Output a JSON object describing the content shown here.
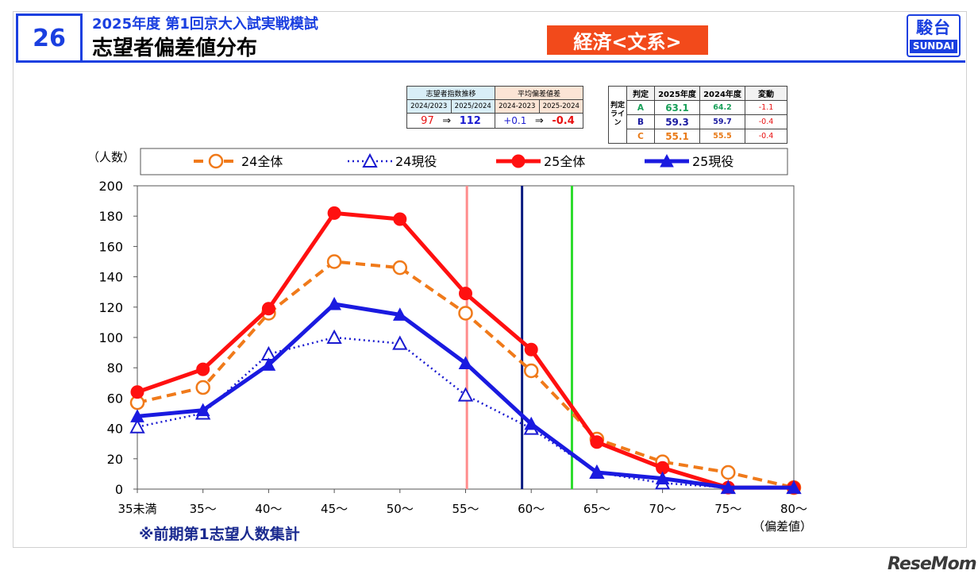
{
  "header": {
    "slide_number": "26",
    "subtitle": "2025年度 第1回京大入試実戦模試",
    "title": "志望者偏差値分布",
    "category": "経済<文系>",
    "logo_kanji": "駿台",
    "logo_en": "SUNDAI"
  },
  "applicant_table": {
    "head_left": "志望者指数推移",
    "head_right": "平均偏差値差",
    "sub": [
      "2024/2023",
      "2025/2024",
      "2024-2023",
      "2025-2024"
    ],
    "left_from": "97",
    "arrow": "⇒",
    "left_to": "112",
    "right_from": "+0.1",
    "right_to": "-0.4"
  },
  "judgement_table": {
    "side_label": "判定ライン",
    "headers": [
      "判定",
      "2025年度",
      "2024年度",
      "変動"
    ],
    "rows": [
      {
        "grade": "A",
        "y2025": "63.1",
        "y2024": "64.2",
        "change": "-1.1",
        "color": "#1aa05a"
      },
      {
        "grade": "B",
        "y2025": "59.3",
        "y2024": "59.7",
        "change": "-0.4",
        "color": "#1a1aa0"
      },
      {
        "grade": "C",
        "y2025": "55.1",
        "y2024": "55.5",
        "change": "-0.4",
        "color": "#e87a18"
      }
    ]
  },
  "chart_data": {
    "type": "line",
    "ylabel": "（人数）",
    "xlabel": "（偏差値）",
    "ylim": [
      0,
      200
    ],
    "yticks": [
      0,
      20,
      40,
      60,
      80,
      100,
      120,
      140,
      160,
      180,
      200
    ],
    "categories": [
      "35未満",
      "35～",
      "40～",
      "45～",
      "50～",
      "55～",
      "60～",
      "65～",
      "70～",
      "75～",
      "80～"
    ],
    "series": [
      {
        "name": "24全体",
        "color": "#f07a1a",
        "values": [
          57,
          67,
          116,
          150,
          146,
          116,
          78,
          33,
          18,
          11,
          1
        ]
      },
      {
        "name": "24現役",
        "color": "#1a1ad0",
        "values": [
          41,
          50,
          89,
          100,
          96,
          62,
          40,
          11,
          4,
          1,
          1
        ]
      },
      {
        "name": "25全体",
        "color": "#ff1010",
        "values": [
          64,
          79,
          119,
          182,
          178,
          129,
          92,
          31,
          14,
          1,
          1
        ]
      },
      {
        "name": "25現役",
        "color": "#1a1ae0",
        "values": [
          48,
          52,
          82,
          122,
          115,
          83,
          43,
          11,
          7,
          1,
          1
        ]
      }
    ],
    "vlines": [
      {
        "x": 55.1,
        "color": "#ff8c8c"
      },
      {
        "x": 59.3,
        "color": "#0a1a80"
      },
      {
        "x": 63.1,
        "color": "#2ddc2d"
      }
    ],
    "legend": "top"
  },
  "footnote": "※前期第1志望人数集計",
  "watermark": "ReseMom"
}
